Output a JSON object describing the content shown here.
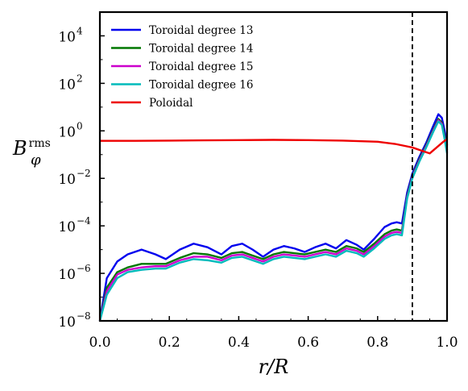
{
  "chart_data": {
    "type": "line",
    "xlabel": "r/R",
    "ylabel": {
      "base": "B",
      "sub": "φ",
      "sup": "rms"
    },
    "xlim": [
      0.0,
      1.0
    ],
    "ylim_log10": [
      -8,
      5
    ],
    "y_scale": "log",
    "xticks": [
      0.0,
      0.2,
      0.4,
      0.6,
      0.8,
      1.0
    ],
    "xtick_labels": [
      "0.0",
      "0.2",
      "0.4",
      "0.6",
      "0.8",
      "1.0"
    ],
    "yticks_exponents": [
      -8,
      -6,
      -4,
      -2,
      0,
      2,
      4
    ],
    "ytick_base": "10",
    "grid": false,
    "legend_position": "top-left",
    "vline": {
      "x": 0.9,
      "style": "dashed",
      "color": "#000000"
    },
    "series": [
      {
        "name": "Toroidal degree 13",
        "color": "#0000ee",
        "x": [
          0.0,
          0.02,
          0.05,
          0.08,
          0.12,
          0.16,
          0.19,
          0.23,
          0.27,
          0.31,
          0.35,
          0.38,
          0.41,
          0.44,
          0.47,
          0.5,
          0.53,
          0.56,
          0.59,
          0.62,
          0.65,
          0.68,
          0.71,
          0.74,
          0.76,
          0.79,
          0.82,
          0.84,
          0.855,
          0.87,
          0.885,
          0.9,
          0.92,
          0.94,
          0.96,
          0.975,
          0.985,
          0.993,
          1.0
        ],
        "log10_y": [
          -8.0,
          -6.2,
          -5.5,
          -5.2,
          -5.0,
          -5.2,
          -5.4,
          -5.0,
          -4.75,
          -4.9,
          -5.2,
          -4.85,
          -4.75,
          -5.0,
          -5.3,
          -5.0,
          -4.85,
          -4.95,
          -5.1,
          -4.9,
          -4.75,
          -4.95,
          -4.6,
          -4.8,
          -5.0,
          -4.55,
          -4.05,
          -3.9,
          -3.85,
          -3.9,
          -2.6,
          -1.8,
          -1.1,
          -0.5,
          0.2,
          0.7,
          0.55,
          0.0,
          -0.6
        ]
      },
      {
        "name": "Toroidal degree 14",
        "color": "#007700",
        "x": [
          0.0,
          0.02,
          0.05,
          0.08,
          0.12,
          0.16,
          0.19,
          0.23,
          0.27,
          0.31,
          0.35,
          0.38,
          0.41,
          0.44,
          0.47,
          0.5,
          0.53,
          0.56,
          0.59,
          0.62,
          0.65,
          0.68,
          0.71,
          0.74,
          0.76,
          0.79,
          0.82,
          0.84,
          0.855,
          0.87,
          0.885,
          0.9,
          0.92,
          0.94,
          0.96,
          0.975,
          0.985,
          0.993,
          1.0
        ],
        "log10_y": [
          -8.0,
          -6.6,
          -5.95,
          -5.75,
          -5.6,
          -5.6,
          -5.6,
          -5.35,
          -5.15,
          -5.2,
          -5.35,
          -5.15,
          -5.1,
          -5.25,
          -5.4,
          -5.2,
          -5.1,
          -5.15,
          -5.2,
          -5.1,
          -5.0,
          -5.1,
          -4.85,
          -4.95,
          -5.1,
          -4.75,
          -4.35,
          -4.2,
          -4.15,
          -4.2,
          -2.75,
          -1.9,
          -1.2,
          -0.6,
          0.05,
          0.5,
          0.35,
          -0.2,
          -0.8
        ]
      },
      {
        "name": "Toroidal degree 15",
        "color": "#cc00cc",
        "x": [
          0.0,
          0.02,
          0.05,
          0.08,
          0.12,
          0.16,
          0.19,
          0.23,
          0.27,
          0.31,
          0.35,
          0.38,
          0.41,
          0.44,
          0.47,
          0.5,
          0.53,
          0.56,
          0.59,
          0.62,
          0.65,
          0.68,
          0.71,
          0.74,
          0.76,
          0.79,
          0.82,
          0.84,
          0.855,
          0.87,
          0.885,
          0.9,
          0.92,
          0.94,
          0.96,
          0.975,
          0.985,
          0.993,
          1.0
        ],
        "log10_y": [
          -8.0,
          -6.75,
          -6.05,
          -5.85,
          -5.75,
          -5.7,
          -5.7,
          -5.45,
          -5.3,
          -5.3,
          -5.45,
          -5.25,
          -5.2,
          -5.35,
          -5.5,
          -5.3,
          -5.2,
          -5.25,
          -5.3,
          -5.2,
          -5.1,
          -5.2,
          -4.95,
          -5.05,
          -5.2,
          -4.85,
          -4.45,
          -4.3,
          -4.25,
          -4.3,
          -2.8,
          -1.95,
          -1.25,
          -0.65,
          0.0,
          0.45,
          0.3,
          -0.3,
          -0.9
        ]
      },
      {
        "name": "Toroidal degree 16",
        "color": "#00bbbb",
        "x": [
          0.0,
          0.02,
          0.05,
          0.08,
          0.12,
          0.16,
          0.19,
          0.23,
          0.27,
          0.31,
          0.35,
          0.38,
          0.41,
          0.44,
          0.47,
          0.5,
          0.53,
          0.56,
          0.59,
          0.62,
          0.65,
          0.68,
          0.71,
          0.74,
          0.76,
          0.79,
          0.82,
          0.84,
          0.855,
          0.87,
          0.885,
          0.9,
          0.92,
          0.94,
          0.96,
          0.975,
          0.985,
          0.993,
          1.0
        ],
        "log10_y": [
          -8.0,
          -6.9,
          -6.2,
          -5.95,
          -5.85,
          -5.8,
          -5.8,
          -5.55,
          -5.4,
          -5.45,
          -5.55,
          -5.35,
          -5.3,
          -5.45,
          -5.6,
          -5.4,
          -5.3,
          -5.35,
          -5.4,
          -5.3,
          -5.2,
          -5.3,
          -5.05,
          -5.15,
          -5.3,
          -4.95,
          -4.55,
          -4.4,
          -4.35,
          -4.4,
          -2.85,
          -2.0,
          -1.3,
          -0.7,
          -0.05,
          0.4,
          0.25,
          -0.35,
          -0.95
        ]
      },
      {
        "name": "Poloidal",
        "color": "#ee0000",
        "x": [
          0.0,
          0.1,
          0.2,
          0.3,
          0.4,
          0.5,
          0.6,
          0.7,
          0.8,
          0.85,
          0.9,
          0.93,
          0.95,
          0.97,
          0.99,
          1.0
        ],
        "log10_y": [
          -0.42,
          -0.42,
          -0.41,
          -0.4,
          -0.39,
          -0.38,
          -0.39,
          -0.41,
          -0.46,
          -0.55,
          -0.7,
          -0.85,
          -0.95,
          -0.7,
          -0.45,
          -0.35
        ]
      }
    ]
  }
}
